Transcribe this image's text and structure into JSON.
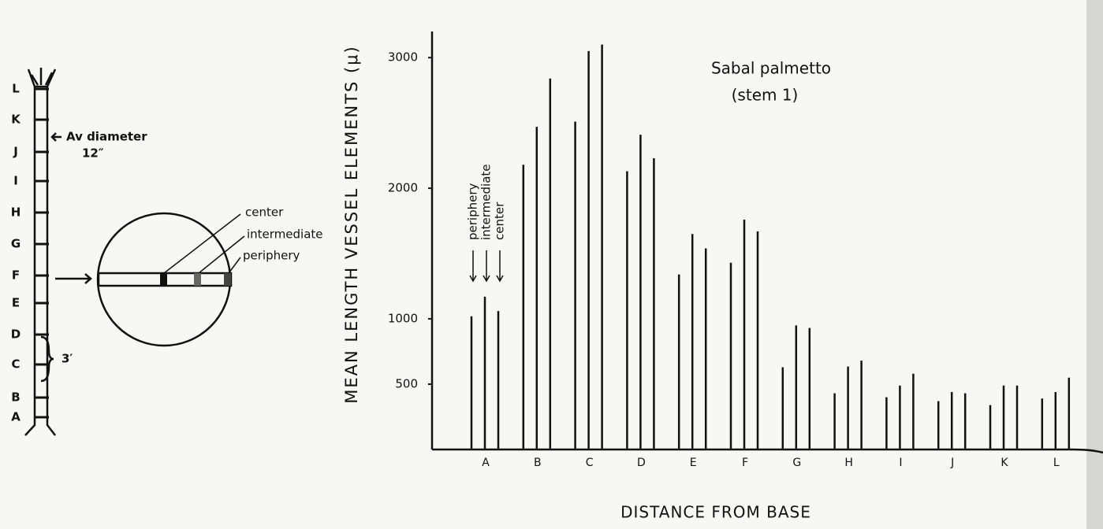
{
  "chart_data": {
    "type": "bar",
    "title": "Sabal palmetto",
    "subtitle": "(stem 1)",
    "y_label": "MEAN LENGTH VESSEL ELEMENTS (μ)",
    "x_label": "DISTANCE FROM BASE",
    "categories": [
      "A",
      "B",
      "C",
      "D",
      "E",
      "F",
      "G",
      "H",
      "I",
      "J",
      "K",
      "L"
    ],
    "series": [
      {
        "name": "periphery",
        "color": "#111111",
        "values": [
          1020,
          2180,
          2510,
          2130,
          1340,
          1430,
          630,
          430,
          400,
          370,
          340,
          390
        ]
      },
      {
        "name": "intermediate",
        "color": "#111111",
        "values": [
          1170,
          2470,
          3050,
          2410,
          1650,
          1760,
          950,
          635,
          490,
          440,
          490,
          440
        ]
      },
      {
        "name": "center",
        "color": "#111111",
        "values": [
          1060,
          2840,
          3100,
          2230,
          1540,
          1670,
          930,
          680,
          580,
          430,
          490,
          550
        ]
      }
    ],
    "ylim": [
      0,
      3200
    ],
    "yticks": [
      500,
      1000,
      2000,
      3000
    ],
    "grid": false
  },
  "diagram": {
    "stem_labels": [
      "L",
      "K",
      "J",
      "I",
      "H",
      "G",
      "F",
      "E",
      "D",
      "C",
      "B",
      "A"
    ],
    "diameter_note": "Av diameter",
    "diameter_value": "12″",
    "segment_length": "3′",
    "section_labels": [
      "center",
      "intermediate",
      "periphery"
    ]
  }
}
